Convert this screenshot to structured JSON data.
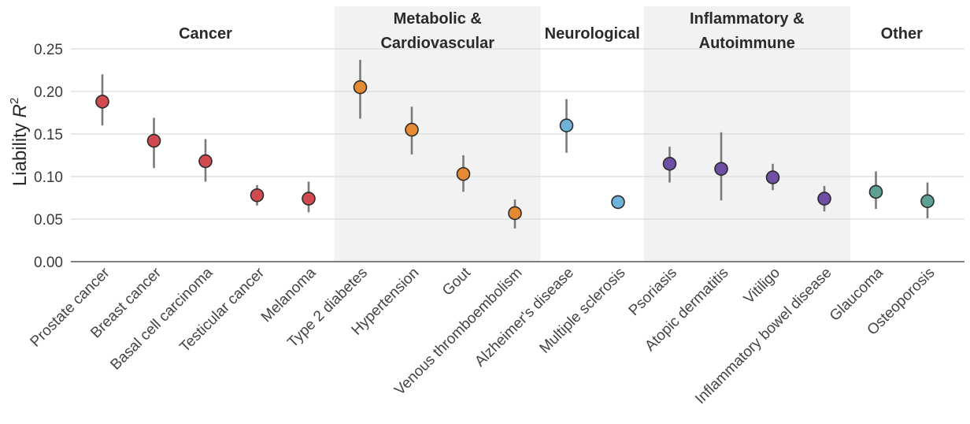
{
  "chart_data": {
    "type": "scatter",
    "subtype": "point-with-error-bars",
    "ylabel": "Liability R²",
    "ylabel_parts": {
      "base": "Liability ",
      "var": "R",
      "sup": "2"
    },
    "ylim": [
      0,
      0.25
    ],
    "yticks": [
      0.0,
      0.05,
      0.1,
      0.15,
      0.2,
      0.25
    ],
    "ytick_labels": [
      "0.00",
      "0.05",
      "0.10",
      "0.15",
      "0.20",
      "0.25"
    ],
    "grid": true,
    "categories": [
      "Prostate cancer",
      "Breast cancer",
      "Basal cell carcinoma",
      "Testicular cancer",
      "Melanoma",
      "Type 2 diabetes",
      "Hypertension",
      "Gout",
      "Venous thromboembolism",
      "Alzheimer's disease",
      "Multiple sclerosis",
      "Psoriasis",
      "Atopic dermatitis",
      "Vitiligo",
      "Inflammatory bowel disease",
      "Glaucoma",
      "Osteoporosis"
    ],
    "values": [
      0.188,
      0.142,
      0.118,
      0.078,
      0.074,
      0.205,
      0.155,
      0.103,
      0.057,
      0.16,
      0.07,
      0.115,
      0.109,
      0.099,
      0.074,
      0.082,
      0.071
    ],
    "lower": [
      0.16,
      0.11,
      0.094,
      0.066,
      0.058,
      0.168,
      0.126,
      0.082,
      0.039,
      0.128,
      0.062,
      0.093,
      0.072,
      0.084,
      0.059,
      0.062,
      0.051
    ],
    "upper": [
      0.22,
      0.169,
      0.144,
      0.09,
      0.094,
      0.237,
      0.182,
      0.125,
      0.073,
      0.191,
      0.076,
      0.135,
      0.152,
      0.115,
      0.089,
      0.106,
      0.093
    ],
    "groups": [
      {
        "name": "Cancer",
        "lines": [
          "Cancer"
        ],
        "start": 0,
        "end": 4,
        "shaded": false,
        "color": "#d04a4f"
      },
      {
        "name": "Metabolic & Cardiovascular",
        "lines": [
          "Metabolic &",
          "Cardiovascular"
        ],
        "start": 5,
        "end": 8,
        "shaded": true,
        "color": "#e58a33"
      },
      {
        "name": "Neurological",
        "lines": [
          "Neurological"
        ],
        "start": 9,
        "end": 10,
        "shaded": false,
        "color": "#6fb3da"
      },
      {
        "name": "Inflammatory & Autoimmune",
        "lines": [
          "Inflammatory &",
          "Autoimmune"
        ],
        "start": 11,
        "end": 14,
        "shaded": true,
        "color": "#6e4fa3"
      },
      {
        "name": "Other",
        "lines": [
          "Other"
        ],
        "start": 15,
        "end": 16,
        "shaded": false,
        "color": "#5fa095"
      }
    ],
    "shade_color": "#f2f2f2",
    "errorbar_color": "#7a7a7a",
    "marker_edge_color": "#2b2b2b"
  }
}
